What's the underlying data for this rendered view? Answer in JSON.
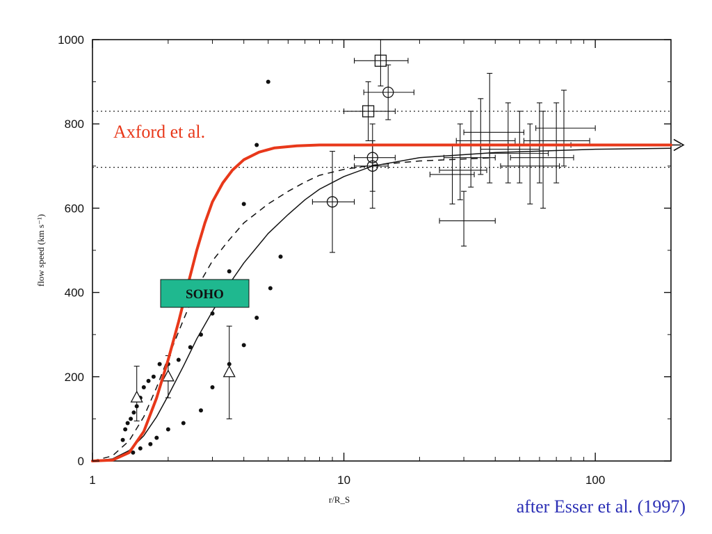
{
  "chart_data": {
    "type": "scatter",
    "title": "",
    "xlabel": "r/R_S",
    "ylabel": "flow speed (km s⁻¹)",
    "xscale": "log",
    "xlim": [
      1,
      200
    ],
    "ylim": [
      0,
      1000
    ],
    "x_ticks": [
      1,
      10,
      100
    ],
    "x_tick_labels": [
      "1",
      "10",
      "100"
    ],
    "y_ticks": [
      0,
      200,
      400,
      600,
      800,
      1000
    ],
    "y_tick_labels": [
      "0",
      "200",
      "400",
      "600",
      "800",
      "1000"
    ],
    "grid": false,
    "reference_lines": [
      {
        "y": 830,
        "style": "dotted"
      },
      {
        "y": 697,
        "style": "dotted"
      }
    ],
    "series": [
      {
        "style": "red-solid-thick",
        "color": "#e8381a",
        "x": [
          1,
          1.2,
          1.4,
          1.6,
          1.8,
          2.0,
          2.2,
          2.4,
          2.6,
          2.8,
          3.0,
          3.3,
          3.6,
          4.0,
          4.6,
          5.3,
          6.5,
          8,
          10,
          20,
          50,
          100,
          200
        ],
        "y": [
          0,
          2,
          20,
          70,
          150,
          240,
          330,
          420,
          500,
          565,
          615,
          660,
          690,
          715,
          733,
          743,
          748,
          750,
          750,
          750,
          750,
          750,
          750
        ]
      },
      {
        "style": "black-dashed",
        "color": "#111111",
        "x": [
          1,
          1.2,
          1.4,
          1.6,
          1.8,
          2.0,
          2.3,
          2.6,
          3.0,
          3.5,
          4.0,
          5.0,
          6.0,
          7.0,
          8.0,
          10,
          13,
          20,
          40
        ],
        "y": [
          0,
          12,
          48,
          105,
          175,
          245,
          335,
          410,
          475,
          525,
          565,
          610,
          640,
          662,
          678,
          692,
          702,
          712,
          720
        ]
      },
      {
        "style": "black-solid-thin",
        "color": "#111111",
        "x": [
          1,
          1.2,
          1.4,
          1.6,
          1.8,
          2.0,
          2.3,
          2.6,
          3.0,
          3.5,
          4.0,
          5.0,
          6.0,
          7.0,
          8.0,
          10,
          13,
          20,
          40,
          100,
          200
        ],
        "y": [
          0,
          5,
          25,
          60,
          105,
          155,
          225,
          290,
          355,
          420,
          470,
          540,
          585,
          620,
          645,
          675,
          700,
          720,
          732,
          740,
          742
        ]
      },
      {
        "style": "black-dots",
        "color": "#111111",
        "x": [
          1.32,
          1.35,
          1.38,
          1.42,
          1.46,
          1.5,
          1.55,
          1.6,
          1.67,
          1.75,
          1.85,
          2.0,
          2.2,
          2.45,
          2.7,
          3.0,
          3.2,
          3.5,
          4.0,
          4.5,
          5.0,
          5.6,
          1.45,
          1.55,
          1.7,
          1.8,
          2.0,
          2.3,
          2.7,
          3.0,
          3.5,
          4.0,
          4.5,
          5.1
        ],
        "y": [
          50,
          75,
          90,
          100,
          115,
          130,
          150,
          175,
          190,
          200,
          230,
          230,
          240,
          270,
          300,
          350,
          410,
          450,
          610,
          750,
          900,
          485,
          20,
          30,
          40,
          55,
          75,
          90,
          120,
          175,
          230,
          275,
          340,
          410
        ]
      },
      {
        "style": "triangles-errorbars",
        "color": "#111111",
        "points": [
          {
            "x": 1.5,
            "y": 150,
            "yerr": [
              95,
              225
            ]
          },
          {
            "x": 2.0,
            "y": 200,
            "yerr": [
              150,
              250
            ]
          },
          {
            "x": 3.5,
            "y": 210,
            "yerr": [
              100,
              320
            ]
          }
        ]
      },
      {
        "style": "circles-errorbars",
        "color": "#111111",
        "points": [
          {
            "x": 9,
            "y": 615,
            "xerr": [
              7.5,
              11
            ],
            "yerr": [
              495,
              735
            ]
          },
          {
            "x": 13,
            "y": 700,
            "xerr": [
              11,
              15
            ],
            "yerr": [
              600,
              760
            ]
          },
          {
            "x": 13,
            "y": 720,
            "xerr": [
              11,
              16
            ],
            "yerr": [
              640,
              800
            ]
          },
          {
            "x": 15,
            "y": 875,
            "xerr": [
              12,
              19
            ],
            "yerr": [
              810,
              940
            ]
          }
        ]
      },
      {
        "style": "squares-errorbars",
        "color": "#111111",
        "points": [
          {
            "x": 14,
            "y": 950,
            "xerr": [
              11,
              18
            ],
            "yerr": [
              890,
              1000
            ]
          },
          {
            "x": 12.5,
            "y": 830,
            "xerr": [
              10,
              16
            ],
            "yerr": [
              760,
              900
            ]
          }
        ]
      },
      {
        "style": "crosses-errorbars",
        "color": "#111111",
        "points": [
          {
            "x": 27,
            "y": 680,
            "xerr": [
              22,
              33
            ],
            "yerr": [
              610,
              750
            ]
          },
          {
            "x": 29,
            "y": 690,
            "xerr": [
              24,
              37
            ],
            "yerr": [
              620,
              800
            ]
          },
          {
            "x": 30,
            "y": 570,
            "xerr": [
              24,
              40
            ],
            "yerr": [
              510,
              640
            ]
          },
          {
            "x": 32,
            "y": 720,
            "xerr": [
              25,
              40
            ],
            "yerr": [
              650,
              830
            ]
          },
          {
            "x": 35,
            "y": 760,
            "xerr": [
              28,
              48
            ],
            "yerr": [
              680,
              860
            ]
          },
          {
            "x": 38,
            "y": 780,
            "xerr": [
              30,
              52
            ],
            "yerr": [
              660,
              920
            ]
          },
          {
            "x": 45,
            "y": 740,
            "xerr": [
              35,
              60
            ],
            "yerr": [
              660,
              850
            ]
          },
          {
            "x": 50,
            "y": 730,
            "xerr": [
              38,
              65
            ],
            "yerr": [
              660,
              830
            ]
          },
          {
            "x": 55,
            "y": 700,
            "xerr": [
              42,
              72
            ],
            "yerr": [
              610,
              800
            ]
          },
          {
            "x": 60,
            "y": 750,
            "xerr": [
              45,
              80
            ],
            "yerr": [
              660,
              850
            ]
          },
          {
            "x": 62,
            "y": 720,
            "xerr": [
              46,
              82
            ],
            "yerr": [
              600,
              830
            ]
          },
          {
            "x": 70,
            "y": 760,
            "xerr": [
              52,
              95
            ],
            "yerr": [
              660,
              850
            ]
          },
          {
            "x": 75,
            "y": 790,
            "xerr": [
              58,
              100
            ],
            "yerr": [
              700,
              880
            ]
          }
        ]
      },
      {
        "style": "arrow",
        "color": "#111111",
        "x": [
          160,
          200
        ],
        "y": [
          750,
          750
        ]
      }
    ],
    "annotations": [
      {
        "text": "Axford et al.",
        "color": "#e8381a",
        "at": "upper-left"
      },
      {
        "text": "SOHO",
        "box_color": "#1fb88f",
        "text_color": "#111111",
        "at": "center-left"
      },
      {
        "text": "after Esser et al. (1997)",
        "color": "#2b2fb5",
        "at": "bottom-right"
      }
    ]
  }
}
